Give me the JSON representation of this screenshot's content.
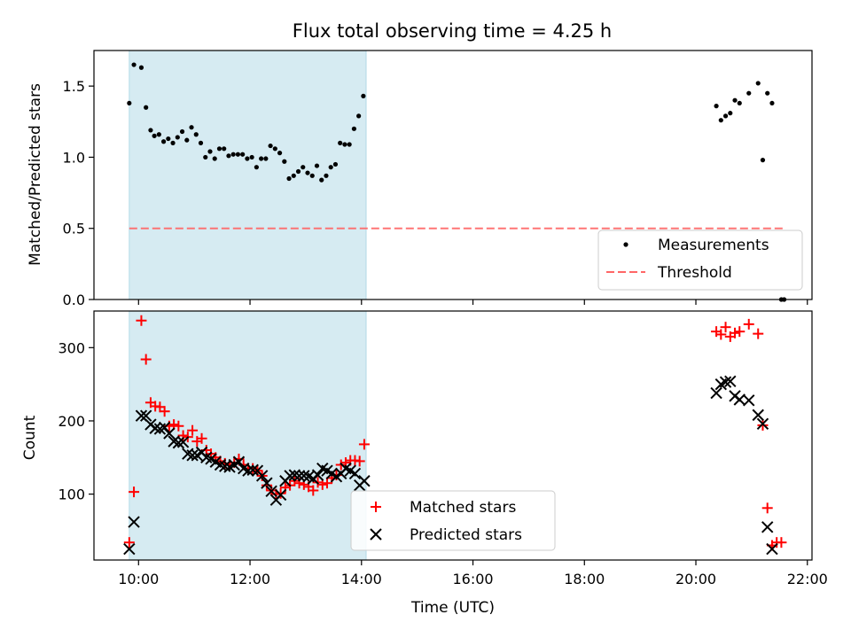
{
  "chart_data": [
    {
      "type": "scatter",
      "title": "Flux total observing time = 4.25 h",
      "xlabel": "",
      "ylabel": "Matched/Predicted stars",
      "xlim": [
        "09:12",
        "22:05"
      ],
      "ylim": [
        0,
        1.75
      ],
      "yticks": [
        "0.0",
        "0.5",
        "1.0",
        "1.5"
      ],
      "grid": false,
      "shaded_region": {
        "x_start": "09:50",
        "x_end": "14:05",
        "color": "#add8e6"
      },
      "threshold": {
        "name": "Threshold",
        "value": 0.5,
        "x_start": "09:50",
        "x_end": "21:35",
        "color": "#ff8080"
      },
      "legend": {
        "position": "lower-right",
        "entries": [
          "Measurements",
          "Threshold"
        ]
      },
      "series": [
        {
          "name": "Measurements",
          "marker": "dot",
          "color": "#000000",
          "points": [
            [
              "09:50",
              1.38
            ],
            [
              "09:55",
              1.65
            ],
            [
              "10:03",
              1.63
            ],
            [
              "10:08",
              1.35
            ],
            [
              "10:13",
              1.19
            ],
            [
              "10:17",
              1.15
            ],
            [
              "10:22",
              1.16
            ],
            [
              "10:27",
              1.11
            ],
            [
              "10:32",
              1.13
            ],
            [
              "10:37",
              1.1
            ],
            [
              "10:42",
              1.14
            ],
            [
              "10:47",
              1.18
            ],
            [
              "10:52",
              1.12
            ],
            [
              "10:57",
              1.21
            ],
            [
              "11:02",
              1.16
            ],
            [
              "11:07",
              1.1
            ],
            [
              "11:12",
              1.0
            ],
            [
              "11:17",
              1.04
            ],
            [
              "11:22",
              0.99
            ],
            [
              "11:27",
              1.06
            ],
            [
              "11:32",
              1.06
            ],
            [
              "11:37",
              1.01
            ],
            [
              "11:42",
              1.02
            ],
            [
              "11:47",
              1.02
            ],
            [
              "11:52",
              1.02
            ],
            [
              "11:57",
              0.99
            ],
            [
              "12:02",
              1.0
            ],
            [
              "12:07",
              0.93
            ],
            [
              "12:12",
              0.99
            ],
            [
              "12:17",
              0.99
            ],
            [
              "12:22",
              1.08
            ],
            [
              "12:27",
              1.06
            ],
            [
              "12:32",
              1.03
            ],
            [
              "12:37",
              0.97
            ],
            [
              "12:42",
              0.85
            ],
            [
              "12:47",
              0.87
            ],
            [
              "12:52",
              0.9
            ],
            [
              "12:57",
              0.93
            ],
            [
              "13:02",
              0.89
            ],
            [
              "13:07",
              0.87
            ],
            [
              "13:12",
              0.94
            ],
            [
              "13:17",
              0.84
            ],
            [
              "13:22",
              0.87
            ],
            [
              "13:27",
              0.93
            ],
            [
              "13:32",
              0.95
            ],
            [
              "13:37",
              1.1
            ],
            [
              "13:42",
              1.09
            ],
            [
              "13:47",
              1.09
            ],
            [
              "13:52",
              1.2
            ],
            [
              "13:57",
              1.29
            ],
            [
              "14:02",
              1.43
            ],
            [
              "20:22",
              1.36
            ],
            [
              "20:27",
              1.26
            ],
            [
              "20:32",
              1.29
            ],
            [
              "20:37",
              1.31
            ],
            [
              "20:42",
              1.4
            ],
            [
              "20:47",
              1.38
            ],
            [
              "20:57",
              1.45
            ],
            [
              "21:07",
              1.52
            ],
            [
              "21:12",
              0.98
            ],
            [
              "21:17",
              1.45
            ],
            [
              "21:22",
              1.38
            ],
            [
              "21:32",
              0.0
            ],
            [
              "21:35",
              0.0
            ]
          ]
        }
      ]
    },
    {
      "type": "scatter",
      "title": "",
      "xlabel": "Time (UTC)",
      "ylabel": "Count",
      "xlim": [
        "09:12",
        "22:05"
      ],
      "ylim": [
        10,
        350
      ],
      "xticks": [
        "10:00",
        "12:00",
        "14:00",
        "16:00",
        "18:00",
        "20:00",
        "22:00"
      ],
      "yticks": [
        "100",
        "200",
        "300"
      ],
      "grid": false,
      "shaded_region": {
        "x_start": "09:50",
        "x_end": "14:05",
        "color": "#add8e6"
      },
      "legend": {
        "position": "lower-center",
        "entries": [
          "Matched stars",
          "Predicted stars"
        ]
      },
      "series": [
        {
          "name": "Matched stars",
          "marker": "plus",
          "color": "#ff0000",
          "points": [
            [
              "09:50",
              34
            ],
            [
              "09:55",
              103
            ],
            [
              "10:03",
              337
            ],
            [
              "10:08",
              284
            ],
            [
              "10:13",
              225
            ],
            [
              "10:18",
              220
            ],
            [
              "10:23",
              219
            ],
            [
              "10:28",
              213
            ],
            [
              "10:33",
              193
            ],
            [
              "10:38",
              195
            ],
            [
              "10:43",
              193
            ],
            [
              "10:48",
              180
            ],
            [
              "10:53",
              178
            ],
            [
              "10:58",
              187
            ],
            [
              "11:03",
              172
            ],
            [
              "11:08",
              176
            ],
            [
              "11:13",
              160
            ],
            [
              "11:18",
              155
            ],
            [
              "11:23",
              150
            ],
            [
              "11:28",
              145
            ],
            [
              "11:33",
              142
            ],
            [
              "11:38",
              140
            ],
            [
              "11:43",
              143
            ],
            [
              "11:48",
              148
            ],
            [
              "11:53",
              140
            ],
            [
              "11:58",
              135
            ],
            [
              "12:03",
              135
            ],
            [
              "12:08",
              132
            ],
            [
              "12:13",
              125
            ],
            [
              "12:18",
              112
            ],
            [
              "12:23",
              105
            ],
            [
              "12:28",
              100
            ],
            [
              "12:33",
              101
            ],
            [
              "12:38",
              109
            ],
            [
              "12:43",
              112
            ],
            [
              "12:48",
              118
            ],
            [
              "12:53",
              115
            ],
            [
              "12:58",
              113
            ],
            [
              "13:03",
              110
            ],
            [
              "13:08",
              105
            ],
            [
              "13:13",
              116
            ],
            [
              "13:18",
              113
            ],
            [
              "13:23",
              115
            ],
            [
              "13:28",
              122
            ],
            [
              "13:33",
              126
            ],
            [
              "13:38",
              140
            ],
            [
              "13:43",
              143
            ],
            [
              "13:48",
              146
            ],
            [
              "13:53",
              146
            ],
            [
              "13:58",
              145
            ],
            [
              "14:03",
              168
            ],
            [
              "20:22",
              322
            ],
            [
              "20:27",
              318
            ],
            [
              "20:32",
              328
            ],
            [
              "20:37",
              315
            ],
            [
              "20:42",
              320
            ],
            [
              "20:47",
              322
            ],
            [
              "20:57",
              332
            ],
            [
              "21:07",
              319
            ],
            [
              "21:12",
              194
            ],
            [
              "21:17",
              81
            ],
            [
              "21:22",
              30
            ],
            [
              "21:27",
              34
            ],
            [
              "21:32",
              34
            ]
          ]
        },
        {
          "name": "Predicted stars",
          "marker": "x",
          "color": "#000000",
          "points": [
            [
              "09:50",
              25
            ],
            [
              "09:55",
              62
            ],
            [
              "10:03",
              207
            ],
            [
              "10:08",
              207
            ],
            [
              "10:13",
              195
            ],
            [
              "10:18",
              190
            ],
            [
              "10:23",
              189
            ],
            [
              "10:28",
              191
            ],
            [
              "10:33",
              183
            ],
            [
              "10:38",
              172
            ],
            [
              "10:43",
              170
            ],
            [
              "10:48",
              171
            ],
            [
              "10:53",
              155
            ],
            [
              "10:58",
              153
            ],
            [
              "11:03",
              153
            ],
            [
              "11:08",
              157
            ],
            [
              "11:13",
              150
            ],
            [
              "11:18",
              148
            ],
            [
              "11:23",
              144
            ],
            [
              "11:28",
              140
            ],
            [
              "11:33",
              138
            ],
            [
              "11:38",
              137
            ],
            [
              "11:43",
              140
            ],
            [
              "11:48",
              144
            ],
            [
              "11:53",
              135
            ],
            [
              "11:58",
              132
            ],
            [
              "12:03",
              133
            ],
            [
              "12:08",
              132
            ],
            [
              "12:13",
              125
            ],
            [
              "12:18",
              115
            ],
            [
              "12:23",
              104
            ],
            [
              "12:28",
              92
            ],
            [
              "12:33",
              99
            ],
            [
              "12:38",
              118
            ],
            [
              "12:43",
              125
            ],
            [
              "12:48",
              126
            ],
            [
              "12:53",
              125
            ],
            [
              "12:58",
              125
            ],
            [
              "13:03",
              124
            ],
            [
              "13:08",
              121
            ],
            [
              "13:13",
              126
            ],
            [
              "13:18",
              135
            ],
            [
              "13:23",
              132
            ],
            [
              "13:28",
              128
            ],
            [
              "13:33",
              124
            ],
            [
              "13:38",
              128
            ],
            [
              "13:43",
              135
            ],
            [
              "13:48",
              132
            ],
            [
              "13:53",
              128
            ],
            [
              "13:58",
              112
            ],
            [
              "14:03",
              118
            ],
            [
              "20:22",
              238
            ],
            [
              "20:27",
              250
            ],
            [
              "20:32",
              253
            ],
            [
              "20:37",
              254
            ],
            [
              "20:42",
              234
            ],
            [
              "20:47",
              229
            ],
            [
              "20:57",
              228
            ],
            [
              "21:07",
              208
            ],
            [
              "21:12",
              196
            ],
            [
              "21:17",
              55
            ],
            [
              "21:22",
              25
            ]
          ]
        }
      ]
    }
  ]
}
